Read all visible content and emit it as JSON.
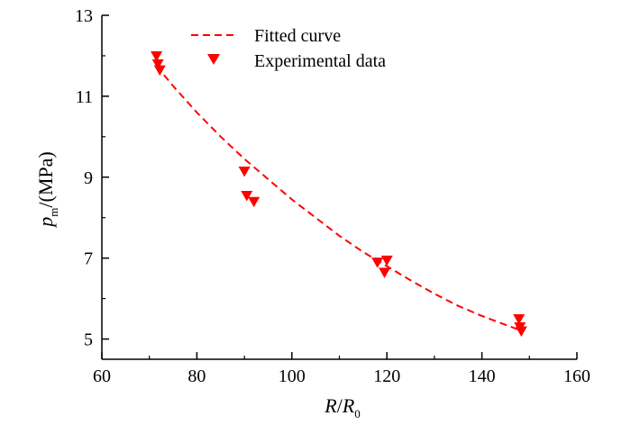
{
  "chart_data": {
    "type": "scatter",
    "title": "",
    "xlabel_main": "R",
    "xlabel_sep": "/",
    "xlabel_main2": "R",
    "xlabel_sub": "0",
    "ylabel_main": "p",
    "ylabel_sub": "m",
    "ylabel_unit": "/(MPa)",
    "xlim": [
      60,
      160
    ],
    "ylim": [
      4.5,
      13
    ],
    "x_ticks": [
      60,
      80,
      100,
      120,
      140,
      160
    ],
    "y_ticks": [
      5,
      7,
      9,
      11,
      13
    ],
    "grid": false,
    "legend_position": "top-center",
    "series": [
      {
        "name": "Fitted curve",
        "kind": "dashed-line",
        "color": "#ff0000",
        "points": [
          [
            71.5,
            11.75
          ],
          [
            75,
            11.25
          ],
          [
            80,
            10.6
          ],
          [
            85,
            10.0
          ],
          [
            90,
            9.45
          ],
          [
            95,
            8.95
          ],
          [
            100,
            8.45
          ],
          [
            105,
            8.0
          ],
          [
            110,
            7.55
          ],
          [
            115,
            7.15
          ],
          [
            120,
            6.8
          ],
          [
            125,
            6.45
          ],
          [
            130,
            6.12
          ],
          [
            135,
            5.82
          ],
          [
            140,
            5.57
          ],
          [
            145,
            5.35
          ],
          [
            148,
            5.22
          ]
        ]
      },
      {
        "name": "Experimental data",
        "kind": "marker-down-triangle",
        "color": "#ff0000",
        "points": [
          [
            71.5,
            12.0
          ],
          [
            71.8,
            11.8
          ],
          [
            72.2,
            11.65
          ],
          [
            90.0,
            9.15
          ],
          [
            90.5,
            8.55
          ],
          [
            92.0,
            8.4
          ],
          [
            118.0,
            6.9
          ],
          [
            120.0,
            6.95
          ],
          [
            119.5,
            6.65
          ],
          [
            147.8,
            5.5
          ],
          [
            148.0,
            5.3
          ],
          [
            148.3,
            5.2
          ]
        ]
      }
    ]
  }
}
